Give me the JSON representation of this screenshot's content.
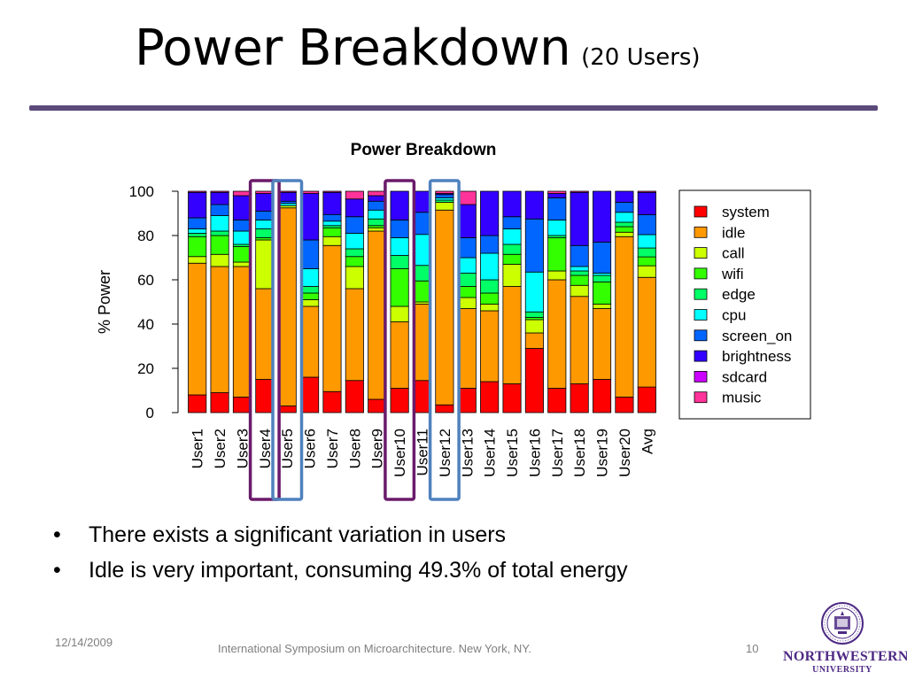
{
  "slide": {
    "title": "Power Breakdown",
    "title_suffix": "(20 Users)",
    "bullets": [
      "There exists a significant variation in users",
      "Idle is very important, consuming 49.3% of total energy"
    ],
    "footer_date": "12/14/2009",
    "footer_venue": "International Symposium on Microarchitecture.  New York, NY.",
    "page_number": "10",
    "logo_name": "NORTHWESTERN",
    "logo_university": "UNIVERSITY",
    "accent_color": "#5b4a7a",
    "logo_color": "#4e2a84"
  },
  "chart_data": {
    "type": "bar",
    "stacked": true,
    "title": "Power Breakdown",
    "xlabel": "",
    "ylabel": "% Power",
    "ylim": [
      0,
      100
    ],
    "yticks": [
      0,
      20,
      40,
      60,
      80,
      100
    ],
    "legend_position": "right",
    "categories": [
      "User1",
      "User2",
      "User3",
      "User4",
      "User5",
      "User6",
      "User7",
      "User8",
      "User9",
      "User10",
      "User11",
      "User12",
      "User13",
      "User14",
      "User15",
      "User16",
      "User17",
      "User18",
      "User19",
      "User20",
      "Avg"
    ],
    "series": [
      {
        "name": "system",
        "color": "#ff0000",
        "values": [
          8,
          9,
          7,
          15,
          3,
          16,
          9.5,
          14.5,
          6,
          11,
          14.5,
          3.5,
          11,
          14,
          13,
          29,
          11,
          13,
          15,
          7,
          11.5
        ]
      },
      {
        "name": "idle",
        "color": "#ff9900",
        "values": [
          59.5,
          57,
          59,
          41,
          89.5,
          32,
          66,
          41.5,
          76,
          30,
          34.5,
          88,
          36,
          32,
          44,
          7,
          49,
          39.5,
          32,
          72.5,
          49.3
        ]
      },
      {
        "name": "call",
        "color": "#ccff00",
        "values": [
          3,
          5.5,
          2,
          22,
          1,
          3,
          4,
          10,
          1.5,
          7,
          1,
          3.5,
          5,
          3,
          10,
          6,
          4,
          5,
          2,
          2,
          5.2
        ]
      },
      {
        "name": "wifi",
        "color": "#33ff00",
        "values": [
          9,
          8.5,
          7,
          1,
          0,
          3,
          4,
          4.5,
          1,
          17,
          9.5,
          0,
          5,
          5,
          4.5,
          1,
          15,
          4.5,
          10,
          2.5,
          4
        ]
      },
      {
        "name": "edge",
        "color": "#00ff66",
        "values": [
          1.5,
          2,
          1,
          4,
          0,
          3,
          1,
          3.5,
          3,
          6,
          7,
          1,
          6,
          6,
          4.5,
          2.5,
          1,
          2,
          3,
          2,
          4
        ]
      },
      {
        "name": "cpu",
        "color": "#00ffff",
        "values": [
          2,
          7,
          6,
          4,
          1,
          8,
          2,
          7,
          4,
          8,
          14,
          1,
          7,
          12,
          7,
          18,
          7,
          2,
          1,
          4.5,
          6
        ]
      },
      {
        "name": "screen_on",
        "color": "#0066ff",
        "values": [
          5,
          5,
          5,
          4,
          1,
          13,
          3,
          7.5,
          4,
          8,
          10,
          1.5,
          9,
          8,
          5.5,
          24,
          10,
          9.5,
          14,
          4.5,
          9
        ]
      },
      {
        "name": "brightness",
        "color": "#3300ff",
        "values": [
          11.5,
          5.5,
          11,
          8,
          4,
          21,
          10,
          8,
          2.5,
          13,
          9.5,
          0.5,
          15,
          20,
          11.5,
          12.5,
          2,
          24,
          23,
          5,
          10
        ]
      },
      {
        "name": "sdcard",
        "color": "#cc00ff",
        "values": [
          0,
          0,
          0,
          0,
          0,
          0,
          0,
          0,
          0,
          0,
          0,
          0,
          0,
          0,
          0,
          0,
          0,
          0,
          0,
          0,
          0
        ]
      },
      {
        "name": "music",
        "color": "#ff3399",
        "values": [
          0.5,
          0.5,
          2,
          1,
          0.5,
          1,
          0.5,
          3.5,
          2,
          0,
          0,
          1,
          6,
          0,
          0,
          0,
          1,
          0.5,
          0,
          0,
          0.5
        ]
      }
    ],
    "highlights": [
      {
        "categories": [
          "User4"
        ],
        "color": "#6a1b6a"
      },
      {
        "categories": [
          "User5"
        ],
        "color": "#4f81bd"
      },
      {
        "categories": [
          "User10"
        ],
        "color": "#6a1b6a"
      },
      {
        "categories": [
          "User12"
        ],
        "color": "#4f81bd"
      }
    ]
  }
}
